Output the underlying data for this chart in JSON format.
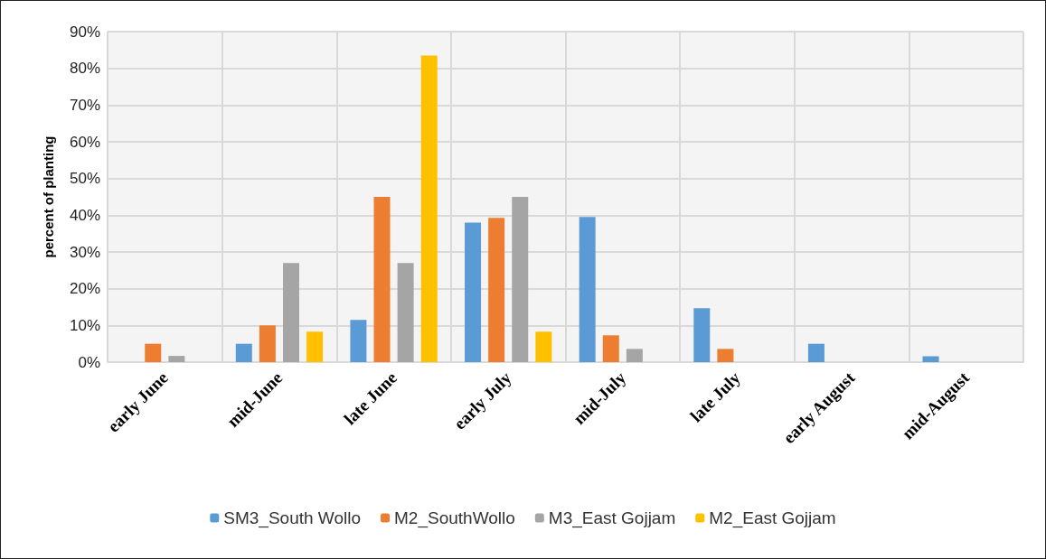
{
  "chart_data": {
    "type": "bar",
    "ylabel": "percent of planting",
    "categories": [
      "early June",
      "mid-June",
      "late June",
      "early July",
      "mid-July",
      "late July",
      "early August",
      "mid-August"
    ],
    "series": [
      {
        "name": "SM3_South Wollo",
        "color": "#5b9bd5",
        "values": [
          null,
          5,
          11.5,
          38,
          39.5,
          14.7,
          5,
          1.6
        ]
      },
      {
        "name": "M2_SouthWollo",
        "color": "#ed7d31",
        "values": [
          5,
          10,
          45,
          39.3,
          7.3,
          3.6,
          null,
          null
        ]
      },
      {
        "name": "M3_East Gojjam",
        "color": "#a5a5a5",
        "values": [
          1.7,
          27,
          27,
          45,
          3.6,
          null,
          null,
          null
        ]
      },
      {
        "name": "M2_East Gojjam",
        "color": "#ffc000",
        "values": [
          null,
          8.3,
          83.5,
          8.3,
          null,
          null,
          null,
          null
        ]
      }
    ],
    "ylim": [
      0,
      90
    ],
    "yticks": [
      {
        "value": 0,
        "label": "0%"
      },
      {
        "value": 10,
        "label": "10%"
      },
      {
        "value": 20,
        "label": "20%"
      },
      {
        "value": 30,
        "label": "30%"
      },
      {
        "value": 40,
        "label": "40%"
      },
      {
        "value": 50,
        "label": "50%"
      },
      {
        "value": 60,
        "label": "60%"
      },
      {
        "value": 70,
        "label": "70%"
      },
      {
        "value": 80,
        "label": "80%"
      },
      {
        "value": 90,
        "label": "90%"
      }
    ],
    "grid": true,
    "legend": "bottom"
  }
}
